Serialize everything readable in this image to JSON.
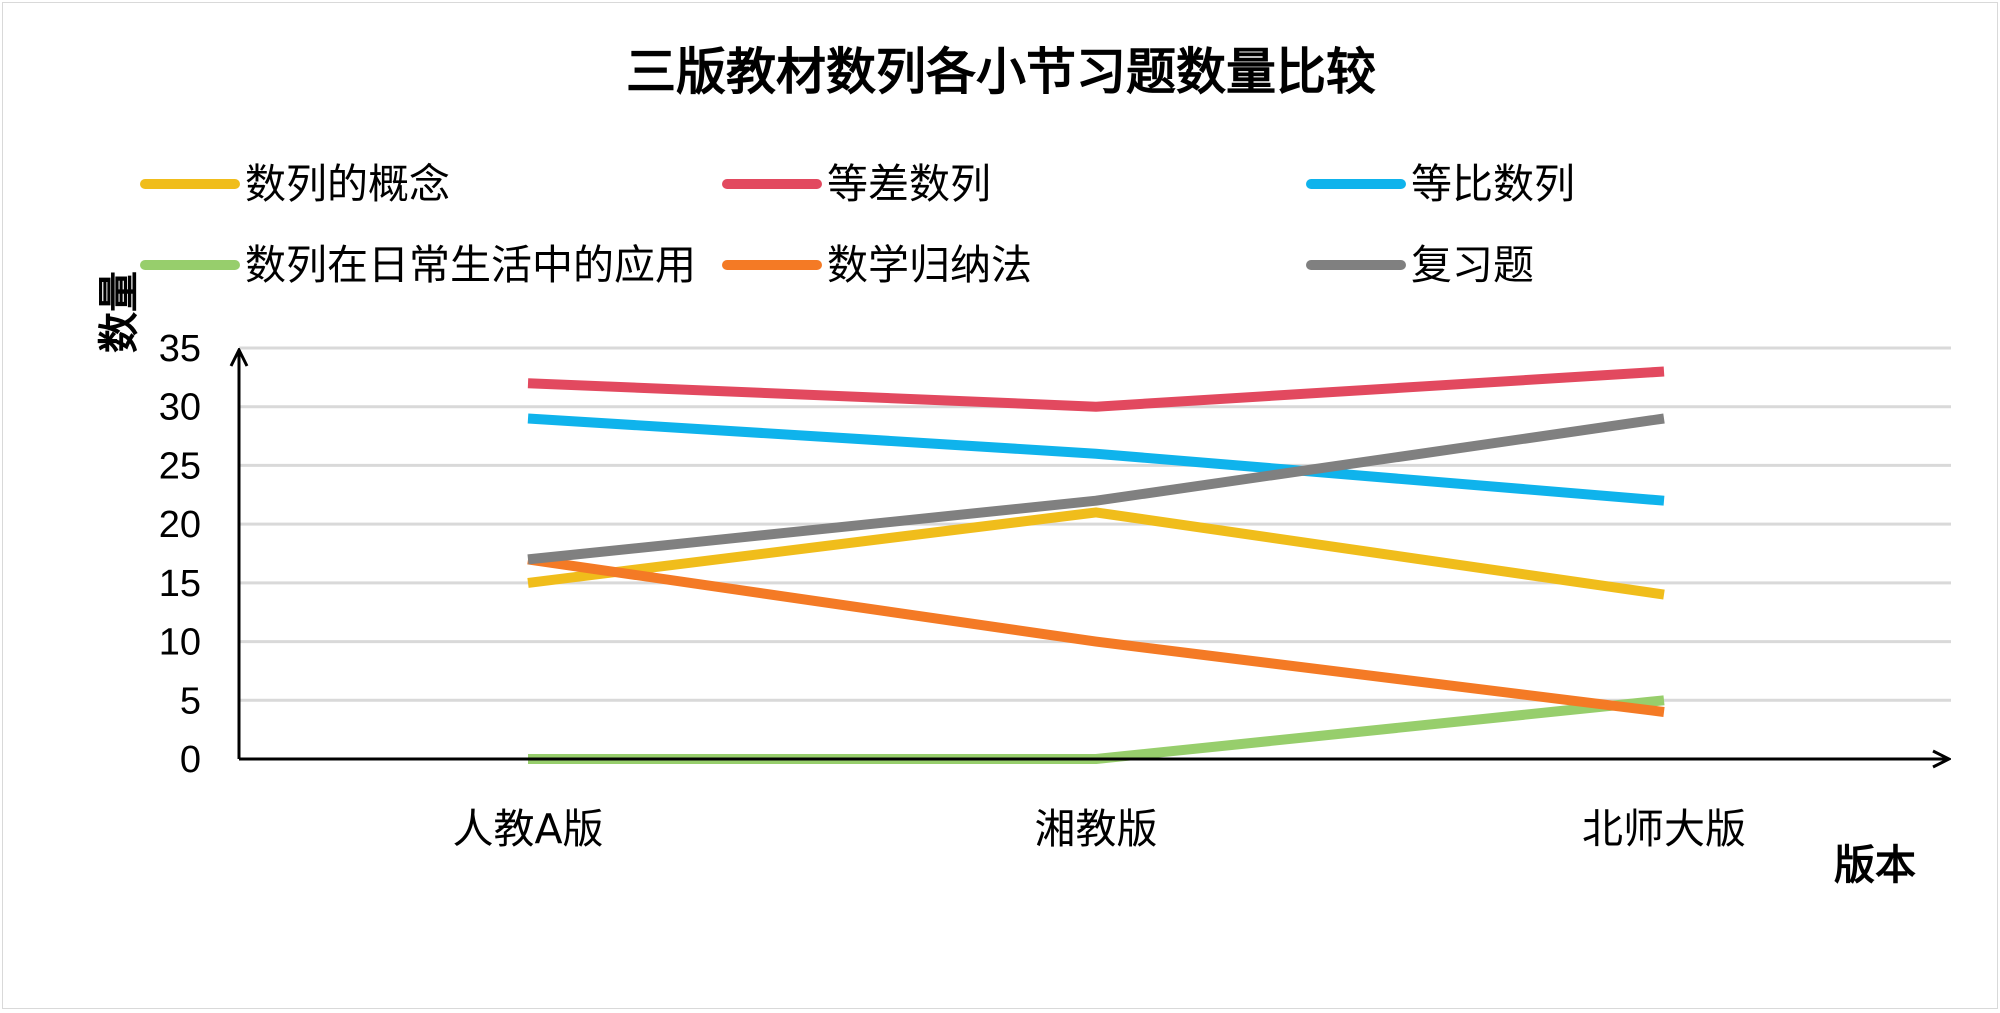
{
  "chart_data": {
    "type": "line",
    "title": "三版教材数列各小节习题数量比较",
    "xlabel": "版本",
    "ylabel": "数量",
    "categories": [
      "人教A版",
      "湘教版",
      "北师大版"
    ],
    "ylim": [
      0,
      35
    ],
    "yticks": [
      0,
      5,
      10,
      15,
      20,
      25,
      30,
      35
    ],
    "grid": true,
    "legend_position": "top",
    "series": [
      {
        "name": "数列的概念",
        "values": [
          15,
          21,
          14
        ],
        "color": "#F0BD1B"
      },
      {
        "name": "等差数列",
        "values": [
          32,
          30,
          33
        ],
        "color": "#E2495F"
      },
      {
        "name": "等比数列",
        "values": [
          29,
          26,
          22
        ],
        "color": "#0FB3EC"
      },
      {
        "name": "数列在日常生活中的应用",
        "values": [
          0,
          0,
          5
        ],
        "color": "#97CE6C"
      },
      {
        "name": "数学归纳法",
        "values": [
          17,
          10,
          4
        ],
        "color": "#F47A25"
      },
      {
        "name": "复习题",
        "values": [
          17,
          22,
          29
        ],
        "color": "#808080"
      }
    ]
  }
}
